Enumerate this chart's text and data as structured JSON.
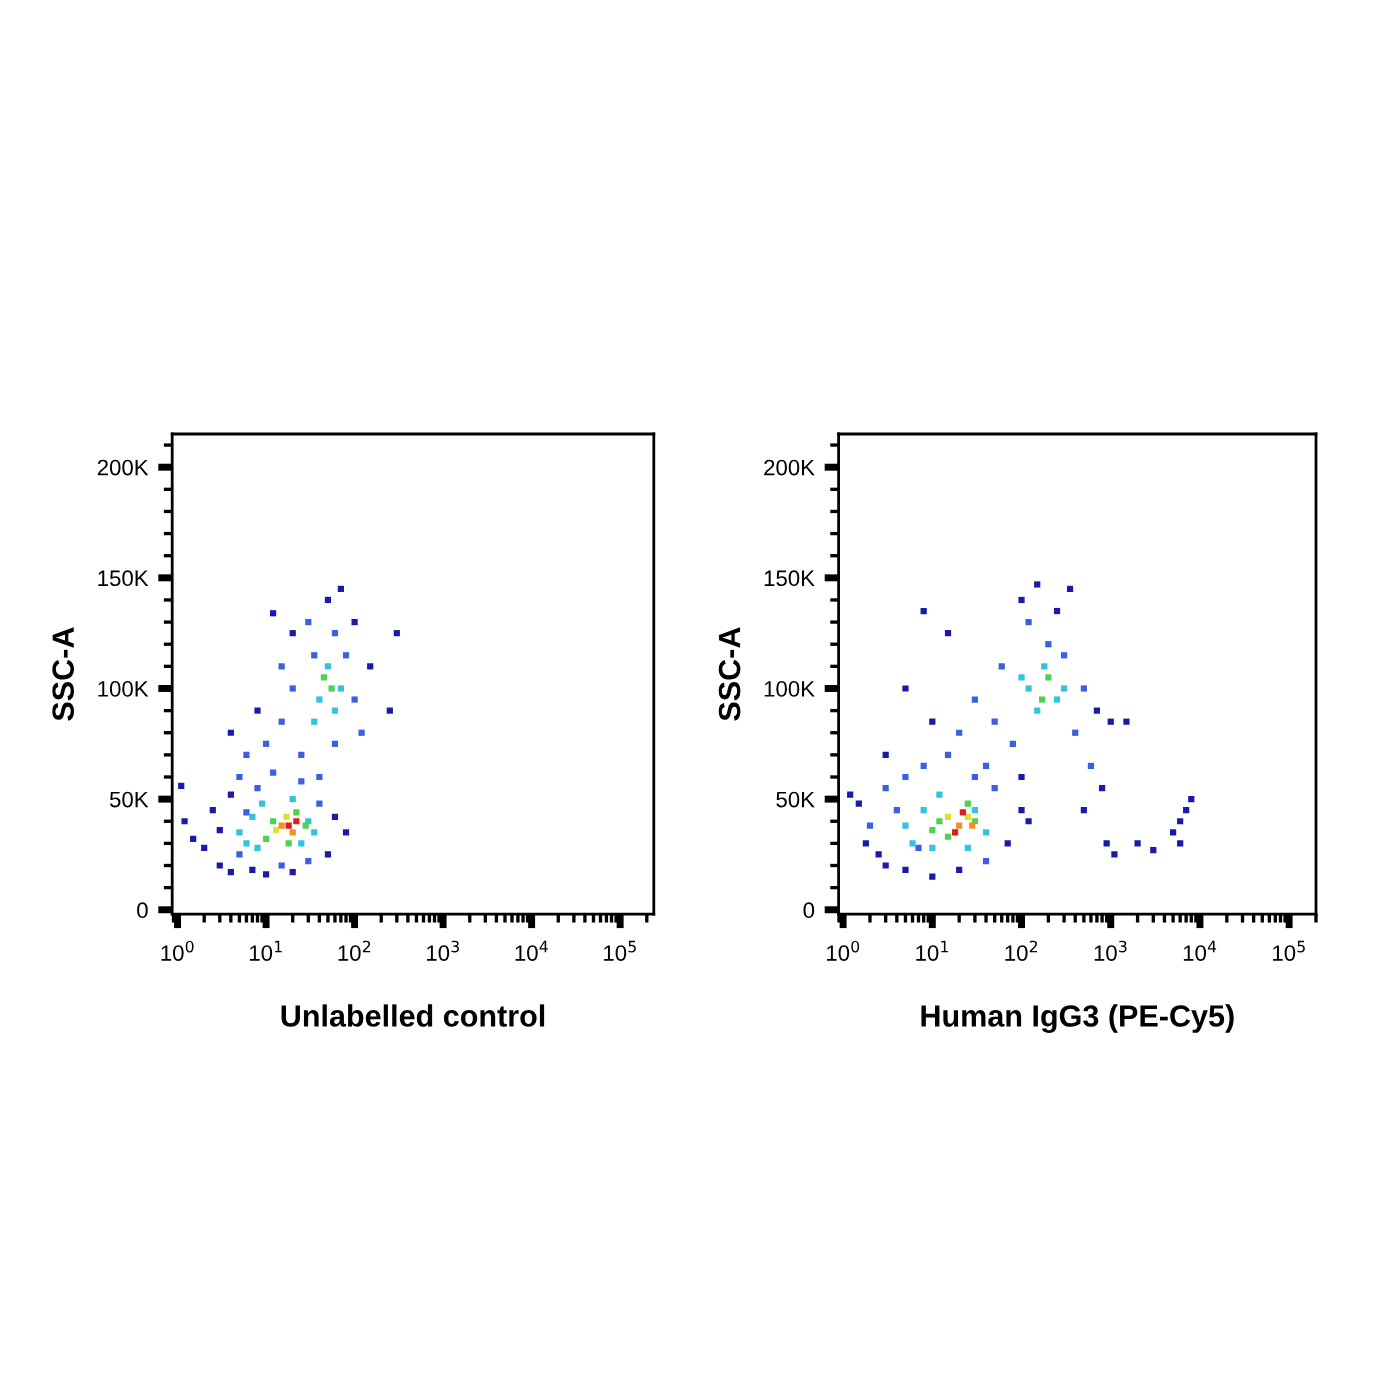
{
  "chart_data": [
    {
      "type": "scatter",
      "xlabel": "Unlabelled control",
      "ylabel": "SSC-A",
      "log": "x",
      "marker": "square",
      "grid": false,
      "xlim": [
        0.87,
        240000
      ],
      "ylim": [
        -2000,
        215000
      ],
      "xticks": [
        {
          "value": 1,
          "label": "10$^{0}$"
        },
        {
          "value": 10,
          "label": "10$^{1}$"
        },
        {
          "value": 100,
          "label": "10$^{2}$"
        },
        {
          "value": 1000,
          "label": "10$^{3}$"
        },
        {
          "value": 10000,
          "label": "10$^{4}$"
        },
        {
          "value": 100000,
          "label": "10$^{5}$"
        }
      ],
      "yticks": [
        0,
        {
          "value": 50000,
          "label": "50K"
        },
        {
          "value": 100000,
          "label": "100K"
        },
        {
          "value": 150000,
          "label": "150K"
        },
        {
          "value": 200000,
          "label": "200K"
        }
      ],
      "series": [
        {
          "x": [
            2,
            2.5,
            3,
            3,
            4,
            4,
            5,
            5,
            6,
            7,
            8,
            10,
            12,
            15,
            20,
            25,
            30,
            40,
            50,
            60,
            80,
            1.2,
            1.5,
            1.1,
            4,
            6,
            8,
            10,
            12,
            15,
            15,
            20,
            25,
            30,
            35,
            40,
            50,
            60,
            70,
            80,
            100,
            100,
            120,
            150,
            250,
            300,
            60,
            20
          ],
          "values": [
            28000,
            45000,
            20000,
            36000,
            52000,
            17000,
            60000,
            25000,
            44000,
            18000,
            55000,
            16000,
            62000,
            20000,
            17000,
            58000,
            22000,
            48000,
            25000,
            42000,
            35000,
            40000,
            32000,
            56000,
            80000,
            70000,
            90000,
            75000,
            134000,
            110000,
            85000,
            125000,
            70000,
            130000,
            115000,
            60000,
            140000,
            125000,
            145000,
            115000,
            130000,
            95000,
            80000,
            110000,
            90000,
            125000,
            75000,
            100000
          ],
          "colors": [
            "#1a1aa8",
            "#1a1aa8",
            "#1a1aa8",
            "#1a1aa8",
            "#1a1aa8",
            "#1a1aa8",
            "#3a5fe0",
            "#3a5fe0",
            "#3a5fe0",
            "#1a1aa8",
            "#3a5fe0",
            "#1a1aa8",
            "#3a5fe0",
            "#3a5fe0",
            "#1a1aa8",
            "#3a5fe0",
            "#3a5fe0",
            "#3a5fe0",
            "#1a1aa8",
            "#1a1aa8",
            "#1a1aa8",
            "#1a1aa8",
            "#1a1aa8",
            "#1a1aa8",
            "#1a1aa8",
            "#3a5fe0",
            "#1a1aa8",
            "#3a5fe0",
            "#1a1aa8",
            "#3a5fe0",
            "#3a5fe0",
            "#1a1aa8",
            "#3a5fe0",
            "#3a5fe0",
            "#3a5fe0",
            "#3a5fe0",
            "#1a1aa8",
            "#3a5fe0",
            "#1a1aa8",
            "#3a5fe0",
            "#1a1aa8",
            "#3a5fe0",
            "#3a5fe0",
            "#1a1aa8",
            "#1a1aa8",
            "#1a1aa8",
            "#3a5fe0",
            "#3a5fe0"
          ]
        },
        {
          "x": [
            5,
            6,
            7,
            8,
            9,
            20,
            30,
            25,
            35,
            10,
            12,
            18,
            22,
            28,
            40,
            50,
            60,
            45,
            55,
            70,
            35,
            13,
            17,
            20,
            15,
            18,
            22
          ],
          "values": [
            35000,
            30000,
            42000,
            28000,
            48000,
            50000,
            40000,
            30000,
            35000,
            32000,
            40000,
            30000,
            44000,
            38000,
            95000,
            110000,
            90000,
            105000,
            100000,
            100000,
            85000,
            36000,
            42000,
            35000,
            38000,
            38000,
            40000
          ],
          "colors": [
            "#33c3e0",
            "#33c3e0",
            "#33c3e0",
            "#33c3e0",
            "#33c3e0",
            "#33c3e0",
            "#33c3e0",
            "#33c3e0",
            "#33c3e0",
            "#4fd04f",
            "#4fd04f",
            "#4fd04f",
            "#4fd04f",
            "#4fd04f",
            "#33c3e0",
            "#33c3e0",
            "#33c3e0",
            "#4fd04f",
            "#4fd04f",
            "#33c3e0",
            "#33c3e0",
            "#e0e030",
            "#e0e030",
            "#f09020",
            "#f09020",
            "#d82020",
            "#d82020"
          ]
        }
      ]
    },
    {
      "type": "scatter",
      "xlabel": "Human IgG3 (PE-Cy5)",
      "ylabel": "SSC-A",
      "log": "x",
      "marker": "square",
      "grid": false,
      "xlim": [
        0.89,
        200000
      ],
      "ylim": [
        -2000,
        215000
      ],
      "xticks": [
        {
          "value": 1,
          "label": "10$^{0}$"
        },
        {
          "value": 10,
          "label": "10$^{1}$"
        },
        {
          "value": 100,
          "label": "10$^{2}$"
        },
        {
          "value": 1000,
          "label": "10$^{3}$"
        },
        {
          "value": 10000,
          "label": "10$^{4}$"
        },
        {
          "value": 100000,
          "label": "10$^{5}$"
        }
      ],
      "yticks": [
        0,
        {
          "value": 50000,
          "label": "50K"
        },
        {
          "value": 100000,
          "label": "100K"
        },
        {
          "value": 150000,
          "label": "150K"
        },
        {
          "value": 200000,
          "label": "200K"
        }
      ],
      "series": [
        {
          "x": [
            1.5,
            1.8,
            2,
            2.5,
            3,
            3,
            4,
            5,
            5,
            7,
            8,
            10,
            15,
            20,
            30,
            40,
            50,
            70,
            100,
            120,
            1.2,
            3,
            5,
            8,
            10,
            15,
            20,
            30,
            40,
            50,
            60,
            80,
            100,
            120,
            150,
            200,
            250,
            300,
            350,
            400,
            500,
            600,
            700,
            800,
            1000,
            100,
            1500,
            500,
            900,
            1100,
            2000,
            3000,
            5000,
            6000,
            7000,
            8000,
            6000
          ],
          "values": [
            48000,
            30000,
            38000,
            25000,
            55000,
            20000,
            45000,
            18000,
            60000,
            28000,
            65000,
            15000,
            70000,
            18000,
            60000,
            22000,
            55000,
            30000,
            45000,
            40000,
            52000,
            70000,
            100000,
            135000,
            85000,
            125000,
            80000,
            95000,
            65000,
            85000,
            110000,
            75000,
            140000,
            130000,
            147000,
            120000,
            135000,
            115000,
            145000,
            80000,
            100000,
            65000,
            90000,
            55000,
            85000,
            60000,
            85000,
            45000,
            30000,
            25000,
            30000,
            27000,
            35000,
            40000,
            45000,
            50000,
            30000
          ],
          "colors": [
            "#1a1aa8",
            "#1a1aa8",
            "#3a5fe0",
            "#1a1aa8",
            "#3a5fe0",
            "#1a1aa8",
            "#3a5fe0",
            "#1a1aa8",
            "#3a5fe0",
            "#3a5fe0",
            "#3a5fe0",
            "#1a1aa8",
            "#3a5fe0",
            "#1a1aa8",
            "#3a5fe0",
            "#3a5fe0",
            "#3a5fe0",
            "#1a1aa8",
            "#1a1aa8",
            "#1a1aa8",
            "#1a1aa8",
            "#1a1aa8",
            "#1a1aa8",
            "#1a1aa8",
            "#1a1aa8",
            "#1a1aa8",
            "#3a5fe0",
            "#3a5fe0",
            "#3a5fe0",
            "#3a5fe0",
            "#3a5fe0",
            "#3a5fe0",
            "#1a1aa8",
            "#3a5fe0",
            "#1a1aa8",
            "#3a5fe0",
            "#1a1aa8",
            "#3a5fe0",
            "#1a1aa8",
            "#3a5fe0",
            "#3a5fe0",
            "#3a5fe0",
            "#1a1aa8",
            "#1a1aa8",
            "#1a1aa8",
            "#1a1aa8",
            "#1a1aa8",
            "#1a1aa8",
            "#1a1aa8",
            "#1a1aa8",
            "#1a1aa8",
            "#1a1aa8",
            "#1a1aa8",
            "#1a1aa8",
            "#1a1aa8",
            "#1a1aa8",
            "#1a1aa8"
          ]
        },
        {
          "x": [
            5,
            6,
            8,
            10,
            12,
            30,
            40,
            25,
            12,
            15,
            25,
            30,
            10,
            120,
            150,
            200,
            170,
            250,
            180,
            100,
            300,
            15,
            20,
            25,
            18,
            22,
            28
          ],
          "values": [
            38000,
            30000,
            45000,
            28000,
            52000,
            45000,
            35000,
            28000,
            40000,
            33000,
            48000,
            40000,
            36000,
            100000,
            90000,
            105000,
            95000,
            95000,
            110000,
            105000,
            100000,
            42000,
            38000,
            42000,
            35000,
            44000,
            38000
          ],
          "colors": [
            "#33c3e0",
            "#33c3e0",
            "#33c3e0",
            "#33c3e0",
            "#33c3e0",
            "#33c3e0",
            "#33c3e0",
            "#33c3e0",
            "#4fd04f",
            "#4fd04f",
            "#4fd04f",
            "#4fd04f",
            "#4fd04f",
            "#33c3e0",
            "#33c3e0",
            "#4fd04f",
            "#4fd04f",
            "#33c3e0",
            "#33c3e0",
            "#33c3e0",
            "#33c3e0",
            "#e0e030",
            "#f09020",
            "#e0e030",
            "#d82020",
            "#d82020",
            "#f09020"
          ]
        }
      ]
    }
  ]
}
